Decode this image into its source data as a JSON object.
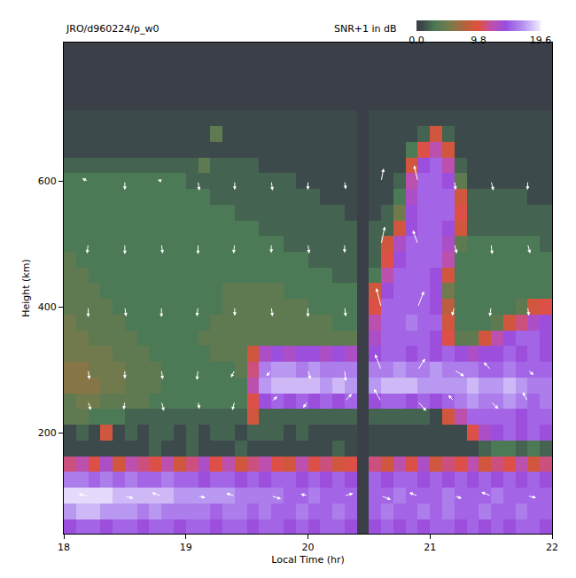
{
  "chart_data": {
    "type": "heatmap",
    "title": "JRO/d960224/p_w0",
    "x_label": "Local Time (hr)",
    "y_label": "Height (km)",
    "x": [
      18.05,
      18.15,
      18.25,
      18.35,
      18.45,
      18.55,
      18.65,
      18.75,
      18.85,
      18.95,
      19.05,
      19.15,
      19.25,
      19.35,
      19.45,
      19.55,
      19.65,
      19.75,
      19.85,
      19.95,
      20.05,
      20.15,
      20.25,
      20.35,
      20.45,
      20.55,
      20.65,
      20.75,
      20.85,
      20.95,
      21.05,
      21.15,
      21.25,
      21.35,
      21.45,
      21.55,
      21.65,
      21.75,
      21.85,
      21.95
    ],
    "y": [
      50,
      75,
      100,
      125,
      150,
      175,
      200,
      225,
      250,
      275,
      300,
      325,
      350,
      375,
      400,
      425,
      450,
      475,
      500,
      525,
      550,
      575,
      600,
      625,
      650,
      675,
      700
    ],
    "z": [
      [
        14,
        15,
        15,
        14,
        15,
        15,
        14,
        15,
        15,
        14,
        15,
        15,
        14,
        15,
        15,
        14,
        15,
        15,
        14,
        15,
        14,
        15,
        15,
        14,
        0,
        14,
        15,
        14,
        15,
        14,
        15,
        15,
        14,
        15,
        14,
        15,
        14,
        15,
        15,
        14
      ],
      [
        17,
        18,
        18,
        17,
        17,
        17,
        16,
        17,
        16,
        16,
        16,
        16,
        15,
        16,
        16,
        15,
        16,
        15,
        15,
        16,
        15,
        15,
        16,
        15,
        0,
        15,
        16,
        15,
        15,
        16,
        15,
        16,
        15,
        15,
        16,
        15,
        15,
        16,
        15,
        15
      ],
      [
        19,
        19,
        19,
        19,
        18,
        18,
        18,
        18,
        18,
        17,
        17,
        17,
        17,
        17,
        16,
        16,
        16,
        16,
        15,
        15,
        16,
        15,
        15,
        15,
        0,
        15,
        15,
        16,
        15,
        15,
        15,
        16,
        15,
        15,
        15,
        16,
        15,
        15,
        15,
        15
      ],
      [
        16,
        16,
        15,
        16,
        15,
        16,
        15,
        15,
        16,
        15,
        15,
        14,
        15,
        15,
        14,
        15,
        14,
        15,
        15,
        14,
        15,
        14,
        15,
        14,
        0,
        15,
        14,
        15,
        15,
        14,
        15,
        14,
        15,
        14,
        15,
        14,
        15,
        14,
        15,
        14
      ],
      [
        11,
        12,
        10,
        13,
        9,
        12,
        11,
        10,
        12,
        9,
        11,
        13,
        10,
        12,
        9,
        11,
        12,
        10,
        9,
        12,
        10,
        11,
        9,
        10,
        0,
        11,
        9,
        12,
        10,
        13,
        9,
        11,
        10,
        12,
        9,
        11,
        10,
        12,
        9,
        11
      ],
      [
        1,
        1,
        1,
        1,
        1,
        1,
        1,
        2,
        1,
        1,
        2,
        1,
        1,
        1,
        2,
        1,
        1,
        1,
        1,
        1,
        1,
        1,
        2,
        1,
        0,
        1,
        1,
        1,
        1,
        1,
        1,
        1,
        1,
        1,
        2,
        3,
        3,
        2,
        3,
        2
      ],
      [
        1,
        2,
        1,
        9,
        1,
        2,
        1,
        2,
        2,
        1,
        2,
        1,
        2,
        2,
        1,
        2,
        2,
        2,
        1,
        2,
        1,
        1,
        1,
        1,
        0,
        1,
        1,
        1,
        1,
        1,
        1,
        1,
        1,
        10,
        13,
        14,
        15,
        14,
        15,
        14
      ],
      [
        4,
        4,
        3,
        3,
        3,
        2,
        2,
        2,
        2,
        2,
        2,
        2,
        2,
        2,
        2,
        9,
        2,
        2,
        2,
        2,
        2,
        2,
        2,
        2,
        0,
        2,
        2,
        2,
        2,
        2,
        1,
        9,
        12,
        15,
        15,
        15,
        15,
        14,
        15,
        15
      ],
      [
        4,
        5,
        5,
        4,
        4,
        4,
        4,
        3,
        3,
        3,
        3,
        3,
        3,
        3,
        3,
        10,
        14,
        15,
        14,
        15,
        14,
        15,
        14,
        15,
        0,
        14,
        15,
        15,
        14,
        15,
        14,
        15,
        16,
        17,
        16,
        16,
        17,
        16,
        15,
        16
      ],
      [
        6,
        6,
        6,
        5,
        5,
        4,
        4,
        4,
        3,
        3,
        3,
        3,
        3,
        3,
        3,
        12,
        17,
        18,
        18,
        18,
        18,
        17,
        18,
        17,
        0,
        17,
        18,
        18,
        18,
        17,
        17,
        17,
        17,
        18,
        17,
        17,
        18,
        17,
        16,
        16
      ],
      [
        6,
        6,
        5,
        5,
        5,
        4,
        4,
        4,
        3,
        3,
        3,
        3,
        3,
        3,
        4,
        11,
        16,
        17,
        17,
        16,
        17,
        16,
        16,
        16,
        0,
        16,
        16,
        17,
        16,
        16,
        17,
        16,
        16,
        16,
        15,
        15,
        16,
        15,
        15,
        15
      ],
      [
        5,
        5,
        5,
        5,
        4,
        4,
        4,
        3,
        3,
        3,
        3,
        3,
        4,
        4,
        4,
        9,
        13,
        14,
        13,
        14,
        14,
        13,
        14,
        13,
        0,
        14,
        15,
        15,
        14,
        15,
        14,
        15,
        14,
        13,
        14,
        14,
        15,
        14,
        15,
        14
      ],
      [
        5,
        5,
        4,
        4,
        4,
        4,
        3,
        3,
        3,
        3,
        3,
        4,
        4,
        4,
        4,
        4,
        4,
        4,
        4,
        4,
        4,
        4,
        4,
        4,
        0,
        13,
        15,
        15,
        15,
        15,
        14,
        10,
        4,
        4,
        9,
        12,
        14,
        15,
        15,
        14
      ],
      [
        5,
        4,
        4,
        4,
        4,
        3,
        3,
        3,
        3,
        3,
        3,
        3,
        4,
        4,
        4,
        4,
        4,
        4,
        4,
        4,
        4,
        4,
        3,
        3,
        0,
        12,
        15,
        15,
        16,
        15,
        15,
        9,
        3,
        3,
        3,
        4,
        9,
        11,
        13,
        14
      ],
      [
        4,
        4,
        4,
        4,
        3,
        3,
        3,
        3,
        3,
        3,
        3,
        3,
        3,
        4,
        4,
        4,
        4,
        4,
        4,
        4,
        3,
        3,
        3,
        3,
        0,
        10,
        15,
        15,
        15,
        15,
        14,
        8,
        3,
        3,
        3,
        3,
        3,
        4,
        9,
        10
      ],
      [
        4,
        4,
        4,
        3,
        3,
        3,
        3,
        3,
        3,
        3,
        3,
        3,
        3,
        4,
        4,
        4,
        4,
        4,
        3,
        3,
        3,
        3,
        3,
        3,
        0,
        9,
        14,
        15,
        15,
        15,
        14,
        5,
        3,
        3,
        3,
        3,
        3,
        3,
        3,
        3
      ],
      [
        4,
        4,
        3,
        3,
        3,
        3,
        3,
        3,
        3,
        3,
        3,
        3,
        3,
        3,
        3,
        3,
        3,
        3,
        3,
        3,
        3,
        3,
        2,
        2,
        0,
        3,
        12,
        15,
        15,
        15,
        14,
        9,
        3,
        3,
        3,
        3,
        3,
        3,
        3,
        3
      ],
      [
        4,
        3,
        3,
        3,
        3,
        3,
        3,
        3,
        3,
        3,
        3,
        3,
        3,
        3,
        3,
        3,
        3,
        3,
        3,
        3,
        2,
        2,
        2,
        2,
        0,
        2,
        10,
        14,
        15,
        15,
        15,
        12,
        3,
        3,
        3,
        3,
        3,
        3,
        3,
        3
      ],
      [
        3,
        3,
        3,
        3,
        3,
        3,
        3,
        3,
        3,
        3,
        3,
        3,
        3,
        3,
        3,
        3,
        3,
        3,
        2,
        2,
        2,
        2,
        2,
        2,
        0,
        2,
        9,
        13,
        15,
        15,
        15,
        13,
        4,
        3,
        3,
        3,
        3,
        3,
        3,
        2
      ],
      [
        3,
        3,
        3,
        3,
        3,
        3,
        3,
        3,
        3,
        3,
        3,
        3,
        3,
        3,
        3,
        3,
        2,
        2,
        2,
        2,
        2,
        2,
        2,
        2,
        0,
        2,
        2,
        9,
        14,
        15,
        15,
        14,
        9,
        2,
        2,
        2,
        2,
        2,
        2,
        2
      ],
      [
        3,
        3,
        3,
        3,
        3,
        3,
        3,
        3,
        3,
        3,
        3,
        3,
        3,
        3,
        2,
        2,
        2,
        2,
        2,
        2,
        2,
        2,
        2,
        1,
        0,
        1,
        2,
        5,
        14,
        15,
        15,
        15,
        10,
        2,
        2,
        2,
        2,
        2,
        2,
        2
      ],
      [
        3,
        3,
        3,
        3,
        3,
        3,
        3,
        3,
        3,
        3,
        3,
        3,
        2,
        2,
        2,
        2,
        2,
        2,
        2,
        2,
        2,
        1,
        1,
        1,
        0,
        1,
        1,
        3,
        13,
        15,
        15,
        15,
        9,
        2,
        2,
        2,
        2,
        2,
        1,
        1
      ],
      [
        3,
        3,
        3,
        3,
        3,
        3,
        3,
        3,
        3,
        3,
        2,
        2,
        2,
        2,
        2,
        2,
        2,
        2,
        2,
        1,
        1,
        1,
        1,
        1,
        0,
        1,
        1,
        2,
        12,
        15,
        15,
        14,
        4,
        1,
        1,
        1,
        1,
        1,
        1,
        1
      ],
      [
        2,
        2,
        2,
        2,
        2,
        2,
        2,
        2,
        2,
        2,
        2,
        4,
        2,
        2,
        2,
        2,
        1,
        1,
        1,
        1,
        1,
        1,
        1,
        1,
        0,
        1,
        1,
        1,
        9,
        14,
        15,
        12,
        2,
        1,
        1,
        1,
        1,
        1,
        1,
        1
      ],
      [
        1,
        1,
        1,
        1,
        1,
        1,
        1,
        1,
        1,
        1,
        1,
        1,
        1,
        1,
        1,
        1,
        1,
        1,
        1,
        1,
        1,
        1,
        1,
        1,
        0,
        1,
        1,
        1,
        3,
        10,
        12,
        9,
        1,
        1,
        1,
        1,
        1,
        1,
        1,
        1
      ],
      [
        1,
        1,
        1,
        1,
        1,
        1,
        1,
        1,
        1,
        1,
        1,
        1,
        4,
        1,
        1,
        1,
        1,
        1,
        1,
        1,
        1,
        1,
        1,
        1,
        0,
        1,
        1,
        1,
        1,
        2,
        9,
        2,
        1,
        1,
        1,
        1,
        1,
        1,
        1,
        1
      ],
      [
        1,
        1,
        1,
        1,
        1,
        1,
        1,
        1,
        1,
        1,
        1,
        1,
        1,
        1,
        1,
        1,
        1,
        1,
        1,
        1,
        1,
        1,
        1,
        1,
        0,
        1,
        1,
        1,
        1,
        1,
        1,
        1,
        1,
        1,
        1,
        1,
        1,
        1,
        1,
        1
      ]
    ],
    "colorbar": {
      "title": "SNR+1 in dB",
      "range": [
        0,
        19.6
      ],
      "ticks": [
        {
          "value": 0,
          "label": "0.0"
        },
        9.8,
        19.6
      ]
    },
    "vectors": {
      "x": [
        18.2,
        18.5,
        18.8,
        19.1,
        19.4,
        19.7,
        20.0,
        20.3,
        20.6,
        20.9,
        21.2,
        21.5,
        21.8
      ],
      "y": [
        100,
        250,
        300,
        400,
        500,
        600
      ],
      "u": [
        [
          -0.08,
          0.07,
          -0.08,
          0.06,
          -0.07,
          0.08,
          -0.06,
          0.07,
          0.08,
          -0.07,
          0.06,
          -0.08,
          0.07
        ],
        [
          0.02,
          -0.01,
          0.02,
          0.01,
          -0.02,
          0.05,
          -0.04,
          0.06,
          -0.06,
          0.07,
          -0.05,
          0.06,
          -0.04
        ],
        [
          0.01,
          0,
          0.01,
          -0.01,
          -0.03,
          -0.04,
          0.02,
          0.01,
          -0.05,
          0.06,
          0.08,
          -0.06,
          0.05
        ],
        [
          0,
          0.01,
          0,
          -0.01,
          0,
          0.01,
          0,
          0.01,
          -0.04,
          0.05,
          -0.02,
          -0.01,
          0.01
        ],
        [
          -0.01,
          0,
          0.01,
          0,
          -0.01,
          0,
          0.01,
          0,
          0.03,
          -0.04,
          0.02,
          0.01,
          0.02
        ],
        [
          -0.05,
          0,
          -0.03,
          0.01,
          0,
          0.01,
          0,
          0.01,
          0.02,
          -0.03,
          0.01,
          0.02,
          0
        ]
      ],
      "v": [
        [
          3,
          -4,
          5,
          -3,
          4,
          -5,
          3,
          4,
          -6,
          5,
          -4,
          6,
          -3
        ],
        [
          -14,
          -13,
          -15,
          -12,
          -14,
          8,
          -10,
          12,
          20,
          -15,
          10,
          -12,
          15
        ],
        [
          -15,
          -14,
          -15,
          -16,
          -12,
          -10,
          -15,
          -18,
          25,
          18,
          -10,
          12,
          -8
        ],
        [
          -16,
          -15,
          -16,
          -15,
          -14,
          -15,
          -16,
          -15,
          30,
          25,
          -14,
          -15,
          -14
        ],
        [
          -15,
          -16,
          -15,
          -16,
          -15,
          -14,
          -15,
          -14,
          28,
          22,
          -15,
          -16,
          -15
        ],
        [
          4,
          -14,
          2,
          -15,
          -14,
          -15,
          -14,
          -13,
          20,
          25,
          -14,
          -15,
          -14
        ]
      ]
    },
    "xlim": [
      18,
      22
    ],
    "xticks": [
      18,
      19,
      20,
      21,
      22
    ],
    "ylim": [
      40,
      820
    ],
    "yticks": [
      200,
      400,
      600
    ],
    "grid": false
  }
}
